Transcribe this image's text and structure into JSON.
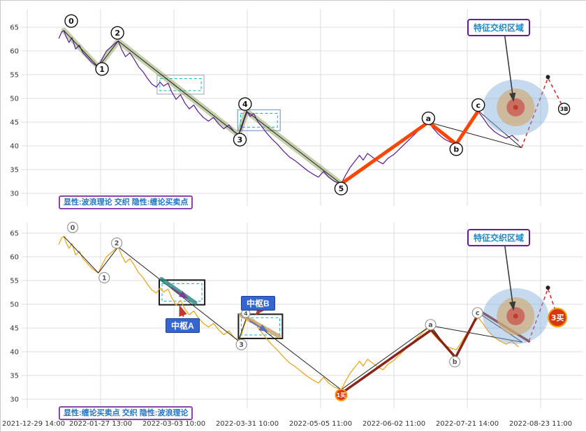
{
  "chart_data": {
    "type": "line",
    "title": "",
    "x_labels": [
      "2021-12-29 14:00",
      "2022-01-27 13:00",
      "2022-03-03 10:00",
      "2022-03-31 10:00",
      "2022-05-05 11:00",
      "2022-06-02 11:00",
      "2022-07-21 14:00",
      "2022-08-23 11:00"
    ],
    "y_ticks": [
      65,
      60,
      55,
      50,
      45,
      40,
      35,
      30
    ],
    "ylim": [
      28.5,
      67
    ],
    "grid": true,
    "palette": {
      "grid": "#dcdcdc",
      "axis_text": "#333333",
      "wave_outline": "#222222",
      "circle_stroke_top": "#111111",
      "circle_stroke_bottom": "#8f8f8f",
      "buy_point_fill": "#d93511",
      "buy_point_stroke": "#ff9800",
      "box_inner_dash": "#00b0c8",
      "pointer_arrow": "#3a3a3a",
      "target_outer": "rgba(127,171,219,0.45)",
      "target_middle": "rgba(208,172,122,0.72)",
      "target_inner": "rgba(201,89,82,0.78)",
      "target_center": "#c0392b"
    },
    "price_series": [
      [
        0.43,
        62.6
      ],
      [
        0.47,
        64.0
      ],
      [
        0.5,
        64.3
      ],
      [
        0.53,
        63.0
      ],
      [
        0.57,
        61.8
      ],
      [
        0.61,
        62.8
      ],
      [
        0.66,
        60.4
      ],
      [
        0.71,
        61.2
      ],
      [
        0.76,
        59.6
      ],
      [
        0.82,
        58.6
      ],
      [
        0.88,
        57.6
      ],
      [
        0.93,
        57.0
      ],
      [
        0.97,
        56.6
      ],
      [
        1.03,
        58.6
      ],
      [
        1.08,
        60.0
      ],
      [
        1.14,
        60.8
      ],
      [
        1.19,
        61.5
      ],
      [
        1.24,
        62.1
      ],
      [
        1.29,
        60.2
      ],
      [
        1.34,
        58.8
      ],
      [
        1.4,
        59.6
      ],
      [
        1.46,
        58.2
      ],
      [
        1.52,
        56.6
      ],
      [
        1.58,
        55.6
      ],
      [
        1.64,
        54.2
      ],
      [
        1.7,
        53.0
      ],
      [
        1.76,
        52.4
      ],
      [
        1.81,
        53.4
      ],
      [
        1.86,
        52.6
      ],
      [
        1.92,
        53.2
      ],
      [
        1.97,
        51.4
      ],
      [
        2.03,
        49.8
      ],
      [
        2.09,
        50.8
      ],
      [
        2.15,
        49.0
      ],
      [
        2.21,
        47.8
      ],
      [
        2.27,
        48.6
      ],
      [
        2.33,
        47.2
      ],
      [
        2.4,
        46.0
      ],
      [
        2.47,
        45.2
      ],
      [
        2.54,
        46.0
      ],
      [
        2.61,
        44.6
      ],
      [
        2.68,
        43.6
      ],
      [
        2.75,
        44.4
      ],
      [
        2.82,
        43.0
      ],
      [
        2.88,
        42.4
      ],
      [
        2.92,
        43.6
      ],
      [
        2.96,
        45.6
      ],
      [
        3.0,
        47.2
      ],
      [
        3.04,
        46.2
      ],
      [
        3.09,
        46.8
      ],
      [
        3.14,
        45.2
      ],
      [
        3.2,
        44.0
      ],
      [
        3.27,
        42.6
      ],
      [
        3.34,
        41.4
      ],
      [
        3.42,
        40.2
      ],
      [
        3.5,
        38.8
      ],
      [
        3.58,
        37.6
      ],
      [
        3.66,
        36.8
      ],
      [
        3.74,
        35.8
      ],
      [
        3.82,
        34.8
      ],
      [
        3.9,
        34.0
      ],
      [
        3.97,
        33.4
      ],
      [
        4.04,
        34.6
      ],
      [
        4.11,
        33.4
      ],
      [
        4.18,
        32.6
      ],
      [
        4.28,
        32.0
      ],
      [
        4.34,
        33.8
      ],
      [
        4.4,
        35.4
      ],
      [
        4.47,
        36.8
      ],
      [
        4.53,
        38.0
      ],
      [
        4.58,
        37.0
      ],
      [
        4.64,
        38.4
      ],
      [
        4.71,
        37.6
      ],
      [
        4.78,
        36.8
      ],
      [
        4.85,
        36.2
      ],
      [
        4.92,
        37.4
      ],
      [
        5.0,
        38.2
      ],
      [
        5.08,
        39.4
      ],
      [
        5.16,
        40.6
      ],
      [
        5.24,
        41.8
      ],
      [
        5.32,
        43.0
      ],
      [
        5.4,
        44.2
      ],
      [
        5.47,
        45.0
      ],
      [
        5.54,
        43.6
      ],
      [
        5.61,
        42.4
      ],
      [
        5.69,
        41.4
      ],
      [
        5.77,
        40.8
      ],
      [
        5.85,
        40.4
      ],
      [
        5.92,
        42.0
      ],
      [
        5.99,
        43.8
      ],
      [
        6.07,
        45.6
      ],
      [
        6.15,
        47.2
      ],
      [
        6.22,
        45.8
      ],
      [
        6.29,
        44.2
      ],
      [
        6.37,
        43.0
      ],
      [
        6.45,
        42.2
      ],
      [
        6.53,
        41.6
      ],
      [
        6.61,
        42.2
      ],
      [
        6.7,
        41.0
      ]
    ],
    "panels": [
      {
        "name": "elliott-wave-explicit",
        "legend": "显性:波浪理论 交织 隐性:缠论买卖点",
        "region_label": "特征交织区域",
        "price_color": "#5a189a",
        "wave_outline": [
          [
            0.5,
            64.3
          ],
          [
            0.97,
            56.6
          ],
          [
            1.24,
            62.1
          ],
          [
            2.88,
            42.3
          ],
          [
            2.99,
            47.3
          ],
          [
            4.28,
            32.0
          ],
          [
            5.47,
            45.0
          ],
          [
            5.85,
            40.4
          ],
          [
            6.15,
            47.4
          ],
          [
            6.74,
            39.6
          ]
        ],
        "extra_lines": [
          [
            [
              5.47,
              45.0
            ],
            [
              6.74,
              39.6
            ]
          ]
        ],
        "trend_band": {
          "color": "rgba(124,148,72,0.45)",
          "width": 8,
          "points": [
            [
              0.5,
              64.3
            ],
            [
              0.97,
              56.6
            ],
            [
              1.24,
              62.1
            ],
            [
              2.88,
              42.3
            ],
            [
              2.99,
              47.3
            ],
            [
              4.28,
              32.0
            ]
          ]
        },
        "impulse": {
          "color": "#ff4500",
          "width": 5,
          "points": [
            [
              4.28,
              32.0
            ],
            [
              5.47,
              45.0
            ],
            [
              5.85,
              40.4
            ],
            [
              6.15,
              47.4
            ]
          ]
        },
        "dashed": {
          "color": "#d63031",
          "points": [
            [
              6.74,
              39.6
            ],
            [
              7.1,
              54.3
            ],
            [
              7.31,
              48.1
            ]
          ],
          "marker": [
            7.1,
            54.5
          ]
        },
        "target": {
          "t": 6.66,
          "p": 48.1
        },
        "pointer": {
          "from": [
            6.51,
            63.4
          ],
          "to": [
            6.63,
            49.5
          ]
        },
        "boxes": [
          {
            "t1": 1.77,
            "p1": 54.9,
            "t2": 2.41,
            "p2": 50.9,
            "stroke": "#b4bac5",
            "w": 1.3
          },
          {
            "t1": 2.87,
            "p1": 47.6,
            "t2": 3.45,
            "p2": 43.2,
            "stroke": "#85a8d0",
            "w": 1.3
          }
        ],
        "labels": [
          {
            "text": "0",
            "t": 0.6,
            "p": 66.3
          },
          {
            "text": "1",
            "t": 1.02,
            "p": 56.2
          },
          {
            "text": "2",
            "t": 1.23,
            "p": 63.8
          },
          {
            "text": "3",
            "t": 2.9,
            "p": 41.3
          },
          {
            "text": "4",
            "t": 2.97,
            "p": 48.8
          },
          {
            "text": "5",
            "t": 4.28,
            "p": 31.0
          },
          {
            "text": "a",
            "t": 5.47,
            "p": 45.8
          },
          {
            "text": "b",
            "t": 5.85,
            "p": 39.3
          },
          {
            "text": "c",
            "t": 6.15,
            "p": 48.6
          },
          {
            "text": "3B",
            "t": 7.32,
            "p": 47.8,
            "r": 8,
            "fs": 8
          }
        ]
      },
      {
        "name": "chan-theory-explicit",
        "legend": "显性:缠论买卖点 交织 隐性:波浪理论",
        "region_label": "特征交织区域",
        "price_color": "#efa10c",
        "wave_outline": [
          [
            0.5,
            64.3
          ],
          [
            0.97,
            56.6
          ],
          [
            1.24,
            62.1
          ],
          [
            2.88,
            42.3
          ],
          [
            2.99,
            47.3
          ],
          [
            4.28,
            32.0
          ],
          [
            5.5,
            45.5
          ],
          [
            5.83,
            38.6
          ],
          [
            6.15,
            48.2
          ],
          [
            6.75,
            42.0
          ]
        ],
        "extra_lines": [
          [
            [
              5.5,
              45.5
            ],
            [
              6.75,
              42.0
            ]
          ]
        ],
        "impulse": {
          "color": "#8c2318",
          "width": 3.5,
          "points": [
            [
              4.28,
              31.2
            ],
            [
              5.51,
              44.6
            ],
            [
              5.84,
              38.8
            ],
            [
              6.17,
              48.6
            ],
            [
              6.84,
              42.2
            ]
          ]
        },
        "dashed": {
          "color": "#d63031",
          "points": [
            [
              6.84,
              42.2
            ],
            [
              7.1,
              53.3
            ],
            [
              7.23,
              47.4
            ]
          ],
          "marker": [
            7.1,
            53.5
          ]
        },
        "target": {
          "t": 6.66,
          "p": 47.5
        },
        "pointer": {
          "from": [
            6.51,
            62.6
          ],
          "to": [
            6.63,
            48.9
          ]
        },
        "boxes": [
          {
            "t1": 1.8,
            "p1": 55.1,
            "t2": 2.42,
            "p2": 49.9,
            "stroke": "#1b1b1b",
            "w": 2
          },
          {
            "t1": 2.88,
            "p1": 47.9,
            "t2": 3.48,
            "p2": 42.8,
            "stroke": "#1b1b1b",
            "w": 2
          }
        ],
        "zone_bands": [
          {
            "color": "rgba(42,130,125,0.8)",
            "width": 6,
            "points": [
              [
                1.83,
                55.3
              ],
              [
                2.29,
                50.3
              ]
            ]
          },
          {
            "color": "rgba(199,166,110,0.85)",
            "width": 6,
            "points": [
              [
                2.91,
                47.8
              ],
              [
                3.43,
                43.3
              ]
            ]
          }
        ],
        "arrows": [
          {
            "from": [
              1.96,
              53.6
            ],
            "to": [
              2.18,
              51.3
            ],
            "color": "#7d3c98",
            "w": 1.6,
            "marker": "ah-purple"
          },
          {
            "from": [
              3.03,
              46.5
            ],
            "to": [
              3.27,
              44.3
            ],
            "color": "#5d6dbe",
            "w": 1.6,
            "marker": "ah-blue"
          },
          {
            "from": [
              2.13,
              47.4
            ],
            "to": [
              2.08,
              49.6
            ],
            "color": "#c0392b",
            "w": 2,
            "marker": "ah-red"
          },
          {
            "from": [
              3.16,
              48.6
            ],
            "to": [
              3.12,
              47.9
            ],
            "color": "#c0392b",
            "w": 2,
            "marker": "ah-red"
          }
        ],
        "labels": [
          {
            "text": "0",
            "t": 0.62,
            "p": 66.2
          },
          {
            "text": "1",
            "t": 1.05,
            "p": 55.6
          },
          {
            "text": "2",
            "t": 1.22,
            "p": 62.9
          },
          {
            "text": "3",
            "t": 2.92,
            "p": 41.5
          },
          {
            "text": "4",
            "t": 2.98,
            "p": 48.1,
            "r": 6,
            "fs": 8
          },
          {
            "text": "a",
            "t": 5.5,
            "p": 45.7
          },
          {
            "text": "b",
            "t": 5.83,
            "p": 37.9
          },
          {
            "text": "c",
            "t": 6.14,
            "p": 48.2
          }
        ],
        "buy_points": [
          {
            "text": "1买",
            "t": 4.28,
            "p": 30.9,
            "r": 8,
            "fs": 8
          },
          {
            "text": "3买",
            "t": 7.23,
            "p": 47.2,
            "r": 13,
            "fs": 11
          }
        ],
        "pivot_labels": [
          {
            "text": "中枢A"
          },
          {
            "text": "中枢B"
          }
        ]
      }
    ]
  }
}
